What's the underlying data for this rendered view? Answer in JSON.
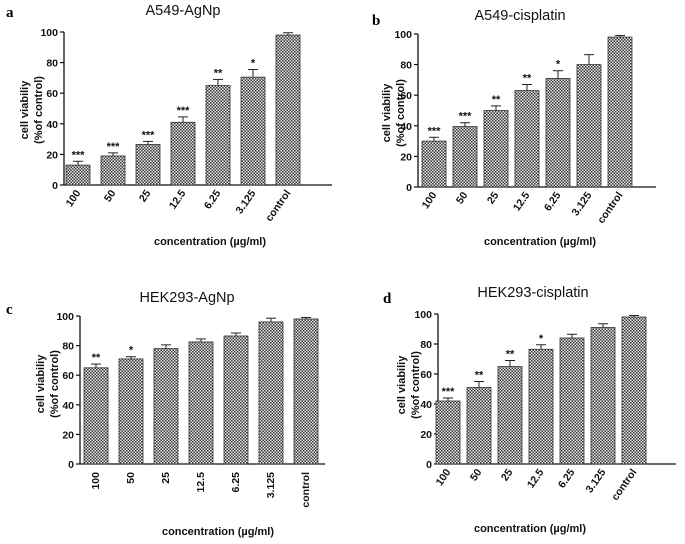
{
  "chart_data": [
    {
      "type": "bar",
      "panel": "a",
      "title": "A549-AgNp",
      "categories": [
        "100",
        "50",
        "25",
        "12.5",
        "6.25",
        "3.125",
        "control"
      ],
      "values": [
        13,
        19,
        26.5,
        41,
        65,
        70.5,
        98
      ],
      "errors": [
        2.5,
        2,
        2,
        3.5,
        4,
        5,
        1.5
      ],
      "significance": [
        "***",
        "***",
        "***",
        "***",
        "**",
        "*",
        ""
      ],
      "xlabel": "concentration (µg/ml)",
      "ylabel": [
        "cell viabiliy",
        "(%of control)"
      ],
      "ylim": [
        0,
        100
      ],
      "yticks": [
        0,
        20,
        40,
        60,
        80,
        100
      ]
    },
    {
      "type": "bar",
      "panel": "b",
      "title": "A549-cisplatin",
      "categories": [
        "100",
        "50",
        "25",
        "12.5",
        "6.25",
        "3.125",
        "control"
      ],
      "values": [
        30,
        39.5,
        50,
        63,
        71,
        80,
        98
      ],
      "errors": [
        2.5,
        2.5,
        3,
        4,
        5,
        6.5,
        1
      ],
      "significance": [
        "***",
        "***",
        "**",
        "**",
        "*",
        "",
        ""
      ],
      "xlabel": "concentration (µg/ml)",
      "ylabel": [
        "cell viabiliy",
        "(%of control)"
      ],
      "ylim": [
        0,
        100
      ],
      "yticks": [
        0,
        20,
        40,
        60,
        80,
        100
      ]
    },
    {
      "type": "bar",
      "panel": "c",
      "title": "HEK293-AgNp",
      "categories": [
        "100",
        "50",
        "25",
        "12.5",
        "6.25",
        "3.125",
        "control"
      ],
      "values": [
        65,
        71,
        78,
        82.5,
        86.5,
        96,
        98
      ],
      "errors": [
        2.5,
        1.5,
        2.5,
        2,
        2,
        2.5,
        1
      ],
      "significance": [
        "**",
        "*",
        "",
        "",
        "",
        "",
        ""
      ],
      "xlabel": "concentration (µg/ml)",
      "ylabel": [
        "cell viabiliy",
        "(%of control)"
      ],
      "ylim": [
        0,
        100
      ],
      "yticks": [
        0,
        20,
        40,
        60,
        80,
        100
      ]
    },
    {
      "type": "bar",
      "panel": "d",
      "title": "HEK293-cisplatin",
      "categories": [
        "100",
        "50",
        "25",
        "12.5",
        "6.25",
        "3.125",
        "control"
      ],
      "values": [
        42,
        51,
        65,
        76.5,
        84,
        91,
        98
      ],
      "errors": [
        2,
        4,
        4,
        3,
        2.5,
        2.5,
        1
      ],
      "significance": [
        "***",
        "**",
        "**",
        "*",
        "",
        "",
        ""
      ],
      "xlabel": "concentration (µg/ml)",
      "ylabel": [
        "cell viabiliy",
        "(%of control)"
      ],
      "ylim": [
        0,
        100
      ],
      "yticks": [
        0,
        20,
        40,
        60,
        80,
        100
      ]
    }
  ]
}
